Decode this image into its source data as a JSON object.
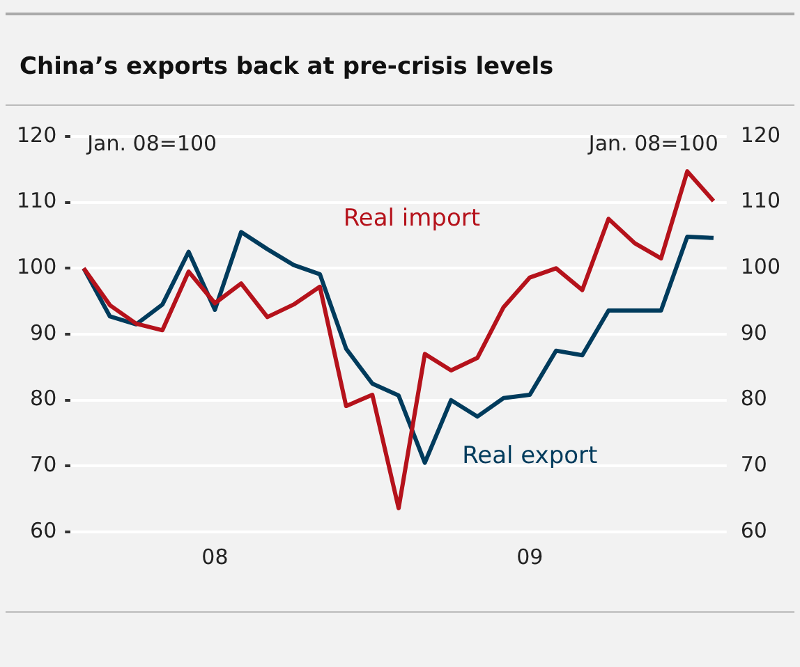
{
  "chart_data": {
    "type": "line",
    "title": "China’s exports back at pre-crisis levels",
    "categories": [
      null,
      null,
      null,
      null,
      null,
      "08",
      null,
      null,
      null,
      null,
      null,
      null,
      null,
      null,
      null,
      null,
      null,
      "09",
      null,
      null,
      null,
      null,
      null,
      null,
      null
    ],
    "ylim": [
      60,
      120
    ],
    "yticks": [
      60,
      70,
      80,
      90,
      100,
      110,
      120
    ],
    "y2lim": [
      60,
      120
    ],
    "y2ticks": [
      60,
      70,
      80,
      90,
      100,
      110,
      120
    ],
    "series": [
      {
        "name": "Real import",
        "color": "#b5121b",
        "values": [
          100,
          94.4,
          91.6,
          90.6,
          99.5,
          94.7,
          97.7,
          92.6,
          94.5,
          97.2,
          79.1,
          80.8,
          63.6,
          87.0,
          84.5,
          86.4,
          94.1,
          98.6,
          100,
          96.7,
          107.5,
          103.8,
          101.5,
          114.7,
          110.2
        ]
      },
      {
        "name": "Real export",
        "color": "#003b5c",
        "values": [
          100,
          92.7,
          91.5,
          94.5,
          102.5,
          93.7,
          105.5,
          102.9,
          100.5,
          99.1,
          87.8,
          82.5,
          80.7,
          70.5,
          80.0,
          77.5,
          80.3,
          80.8,
          87.5,
          86.8,
          93.6,
          93.6,
          93.6,
          104.8,
          104.6
        ]
      }
    ],
    "annotations": [
      "Jan. 08=100",
      "Jan. 08=100"
    ],
    "grid": "y",
    "legend": false,
    "line_style": "solid",
    "marker": "none"
  }
}
